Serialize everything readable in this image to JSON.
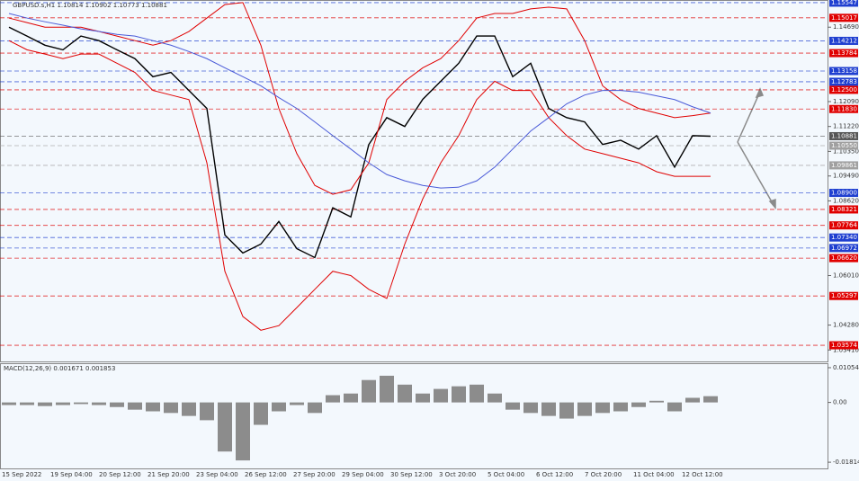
{
  "chart_data": [
    {
      "type": "candlestick",
      "title": "GBPUSD.s,H1  1.10814 1.10902 1.10773 1.10881",
      "ylim": [
        1.0301,
        1.1564
      ],
      "yticks": [
        {
          "value": 1.1469,
          "label": "1.14690"
        },
        {
          "value": 1.1209,
          "label": "1.12090"
        },
        {
          "value": 1.1122,
          "label": "1.11220"
        },
        {
          "value": 1.1035,
          "label": "1.10350"
        },
        {
          "value": 1.0949,
          "label": "1.09490"
        },
        {
          "value": 1.0862,
          "label": "1.08620"
        },
        {
          "value": 1.0601,
          "label": "1.06010"
        },
        {
          "value": 1.0428,
          "label": "1.04280"
        },
        {
          "value": 1.0341,
          "label": "1.03410"
        }
      ],
      "xlabels": [
        "15 Sep 2022",
        "19 Sep 04:00",
        "20 Sep 12:00",
        "21 Sep 20:00",
        "23 Sep 04:00",
        "26 Sep 12:00",
        "27 Sep 20:00",
        "29 Sep 04:00",
        "30 Sep 12:00",
        "3 Oct 20:00",
        "5 Oct 04:00",
        "6 Oct 12:00",
        "7 Oct 20:00",
        "11 Oct 04:00",
        "12 Oct 12:00"
      ],
      "levels": [
        {
          "value": 1.15547,
          "color": "#1f3fd0"
        },
        {
          "value": 1.15017,
          "color": "#e00000"
        },
        {
          "value": 1.14212,
          "color": "#1f3fd0"
        },
        {
          "value": 1.13784,
          "color": "#e00000"
        },
        {
          "value": 1.13158,
          "color": "#1f3fd0"
        },
        {
          "value": 1.12783,
          "color": "#1f3fd0"
        },
        {
          "value": 1.125,
          "label": "1.12500",
          "color": "#e00000"
        },
        {
          "value": 1.1183,
          "label": "1.11830",
          "color": "#e00000"
        },
        {
          "value": 1.10881,
          "color": "#555555"
        },
        {
          "value": 1.1055,
          "label": "1.10550",
          "color": "#a0a0a0"
        },
        {
          "value": 1.09861,
          "color": "#a0a0a0"
        },
        {
          "value": 1.089,
          "label": "1.08900",
          "color": "#1f3fd0"
        },
        {
          "value": 1.08321,
          "color": "#e00000"
        },
        {
          "value": 1.07764,
          "color": "#e00000"
        },
        {
          "value": 1.0734,
          "label": "1.07340",
          "color": "#1f3fd0"
        },
        {
          "value": 1.06972,
          "color": "#1f3fd0"
        },
        {
          "value": 1.0662,
          "label": "1.06620",
          "color": "#e00000"
        },
        {
          "value": 1.05297,
          "color": "#e00000"
        },
        {
          "value": 1.03574,
          "color": "#e00000"
        }
      ],
      "series": [
        {
          "color": "#000000",
          "values": [
            1.1469,
            1.1438,
            1.1406,
            1.139,
            1.1438,
            1.1422,
            1.139,
            1.1359,
            1.1296,
            1.1311,
            1.1248,
            1.1185,
            1.0743,
            1.068,
            1.0711,
            1.079,
            1.0695,
            1.0664,
            1.0838,
            1.0806,
            1.1059,
            1.1153,
            1.1122,
            1.1217,
            1.128,
            1.1343,
            1.1438,
            1.1438,
            1.1296,
            1.1343,
            1.1185,
            1.1153,
            1.1138,
            1.1059,
            1.1074,
            1.1043,
            1.109,
            1.098,
            1.109,
            1.1088
          ]
        },
        {
          "color": "#e00000",
          "values": [
            1.1501,
            1.1485,
            1.1469,
            1.1469,
            1.1469,
            1.1454,
            1.1438,
            1.1422,
            1.1406,
            1.1422,
            1.1454,
            1.1501,
            1.1548,
            1.1555,
            1.1406,
            1.1185,
            1.1027,
            1.0916,
            1.0885,
            1.0901,
            1.0995,
            1.1216,
            1.128,
            1.1327,
            1.1359,
            1.1422,
            1.1501,
            1.1517,
            1.1517,
            1.1533,
            1.1539,
            1.1533,
            1.1422,
            1.1264,
            1.1216,
            1.1185,
            1.1169,
            1.1153,
            1.116,
            1.1169
          ]
        },
        {
          "color": "#e00000",
          "values": [
            1.1422,
            1.139,
            1.1375,
            1.1359,
            1.1375,
            1.1375,
            1.1343,
            1.1311,
            1.1248,
            1.1232,
            1.1216,
            1.0995,
            1.0616,
            1.0458,
            1.041,
            1.0426,
            1.0489,
            1.0553,
            1.0616,
            1.0601,
            1.0553,
            1.0521,
            1.0711,
            1.0869,
            1.0995,
            1.109,
            1.1216,
            1.128,
            1.1248,
            1.1248,
            1.1153,
            1.109,
            1.1043,
            1.1027,
            1.1011,
            1.0995,
            1.0964,
            1.0948,
            1.0948,
            1.0948
          ]
        },
        {
          "color": "#4a5ad8",
          "values": [
            1.1517,
            1.1501,
            1.1488,
            1.1476,
            1.1463,
            1.1454,
            1.1444,
            1.1438,
            1.1422,
            1.1406,
            1.1384,
            1.1359,
            1.1327,
            1.1296,
            1.1264,
            1.1223,
            1.1185,
            1.1138,
            1.109,
            1.1043,
            1.0995,
            1.0954,
            1.0932,
            1.0916,
            1.0907,
            1.091,
            1.0932,
            1.098,
            1.1043,
            1.1106,
            1.1153,
            1.1201,
            1.1232,
            1.1248,
            1.1248,
            1.1242,
            1.1229,
            1.1216,
            1.1191,
            1.1169
          ]
        }
      ]
    },
    {
      "type": "bar",
      "title": "MACD(12,26,9) 0.001671 0.001853",
      "ylim": [
        -0.0203,
        0.0119
      ],
      "yticks": [
        0.010545,
        {
          "value": 0,
          "label": "0.00"
        },
        -0.018145
      ],
      "color": "#8c8c8c",
      "values": [
        -0.0008,
        -0.0008,
        -0.0011,
        -0.0008,
        -0.0005,
        -0.0008,
        -0.0014,
        -0.0022,
        -0.0027,
        -0.0032,
        -0.0041,
        -0.0054,
        -0.0149,
        -0.0176,
        -0.0068,
        -0.0027,
        -0.0008,
        -0.0032,
        0.0022,
        0.0027,
        0.0068,
        0.0081,
        0.0054,
        0.0027,
        0.0041,
        0.0049,
        0.0054,
        0.0027,
        -0.0022,
        -0.0032,
        -0.0041,
        -0.0049,
        -0.0041,
        -0.0032,
        -0.0027,
        -0.0014,
        0.0005,
        -0.0027,
        0.0014,
        0.0019
      ]
    }
  ]
}
